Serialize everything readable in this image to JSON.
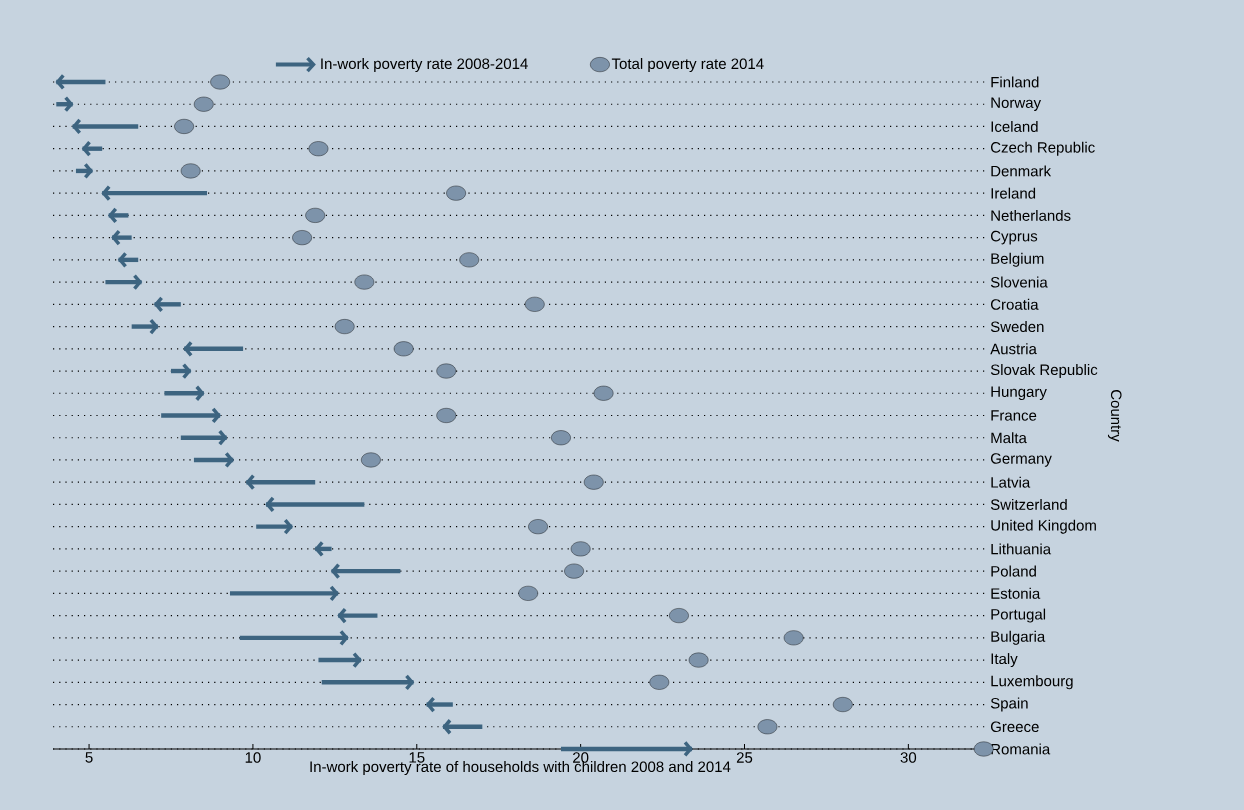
{
  "chart_data": {
    "type": "bar",
    "orientation": "horizontal",
    "xlabel": "In-work poverty rate of households with children 2008 and 2014",
    "ylabel": "Country",
    "categories": [
      "Finland",
      "Norway",
      "Iceland",
      "Czech Republic",
      "Denmark",
      "Ireland",
      "Netherlands",
      "Cyprus",
      "Belgium",
      "Slovenia",
      "Croatia",
      "Sweden",
      "Austria",
      "Slovak Republic",
      "Hungary",
      "France",
      "Malta",
      "Germany",
      "Latvia",
      "Switzerland",
      "United Kingdom",
      "Lithuania",
      "Poland",
      "Estonia",
      "Portugal",
      "Bulgaria",
      "Italy",
      "Luxembourg",
      "Spain",
      "Greece",
      "Romania"
    ],
    "series": [
      {
        "name": "In-work poverty rate 2008-2014",
        "type": "bar",
        "color": "#3d6480",
        "base": [
          5.5,
          4.0,
          6.5,
          5.4,
          4.6,
          8.6,
          6.2,
          6.3,
          6.5,
          5.5,
          7.8,
          6.3,
          9.7,
          7.5,
          7.3,
          7.2,
          7.8,
          8.2,
          11.9,
          13.4,
          10.1,
          12.4,
          14.5,
          9.3,
          13.8,
          9.6,
          12.0,
          12.1,
          16.1,
          17.0,
          19.4
        ],
        "values": [
          -1.5,
          0.5,
          -2.0,
          -0.6,
          0.5,
          -3.2,
          -0.6,
          -0.6,
          -0.6,
          1.1,
          -0.8,
          0.8,
          -1.8,
          0.6,
          1.2,
          1.8,
          1.4,
          1.2,
          -2.1,
          -3.0,
          1.1,
          -0.5,
          -2.1,
          3.3,
          -1.2,
          3.3,
          1.3,
          2.8,
          -0.8,
          -1.2,
          4.0
        ]
      },
      {
        "name": "Total poverty rate 2014",
        "type": "scatter",
        "color": "#7d93aa",
        "values": [
          9.0,
          8.5,
          7.9,
          12.0,
          8.1,
          16.2,
          11.9,
          11.5,
          16.6,
          13.4,
          18.6,
          12.8,
          14.6,
          15.9,
          20.7,
          15.9,
          19.4,
          13.6,
          20.4,
          null,
          18.7,
          20.0,
          19.8,
          18.4,
          23.0,
          26.5,
          23.6,
          22.4,
          28.0,
          25.7,
          32.3
        ]
      }
    ],
    "xlim": [
      3.9,
      32.4
    ],
    "xticks": [
      5,
      10,
      15,
      20,
      25,
      30
    ],
    "grid": "y",
    "legend": "top",
    "marker": "circle"
  }
}
